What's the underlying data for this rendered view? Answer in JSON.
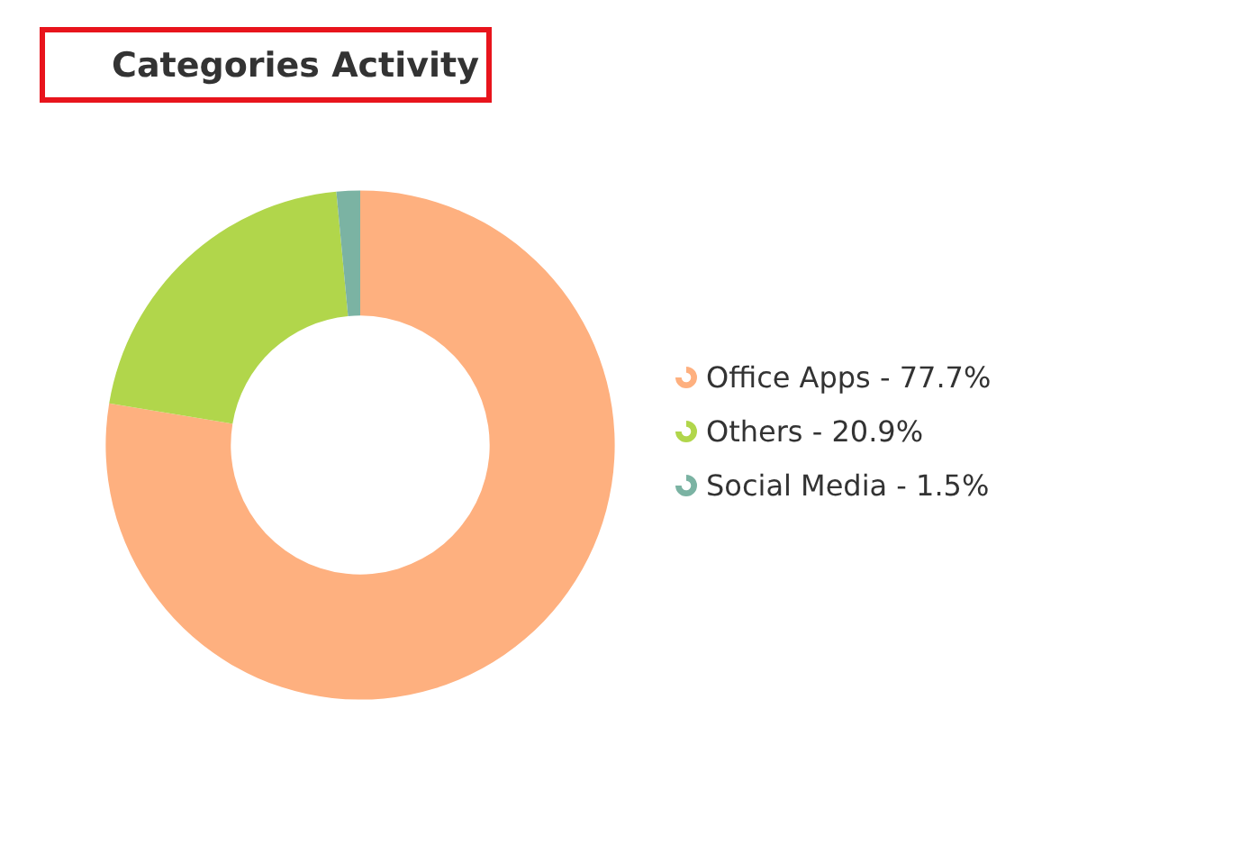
{
  "chart_data": {
    "type": "donut",
    "title": "Categories Activity",
    "categories": [
      "Office Apps",
      "Others",
      "Social Media"
    ],
    "values": [
      77.7,
      20.9,
      1.5
    ],
    "value_labels": [
      "77.7%",
      "20.9%",
      "1.5%"
    ],
    "colors": [
      "#feb07f",
      "#b1d64b",
      "#7bb3a3"
    ],
    "legend": "right"
  }
}
